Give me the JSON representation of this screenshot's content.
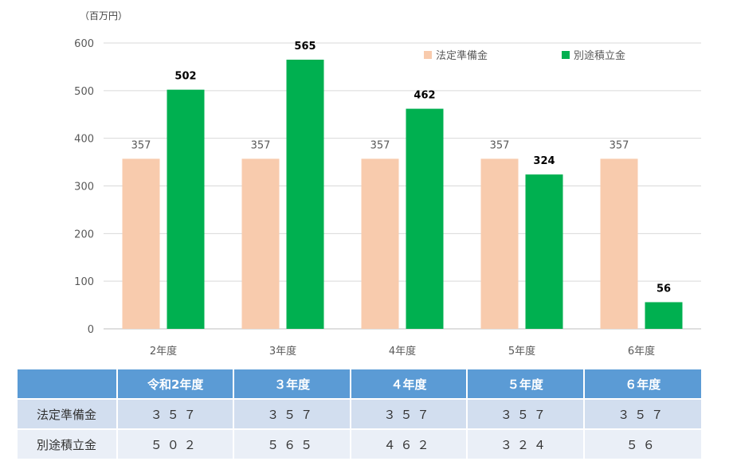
{
  "chart_data": {
    "type": "bar",
    "unit_label": "（百万円）",
    "categories": [
      "2年度",
      "3年度",
      "4年度",
      "5年度",
      "6年度"
    ],
    "series": [
      {
        "name": "法定準備金",
        "values": [
          357,
          357,
          357,
          357,
          357
        ],
        "color": "#f8cbad",
        "label_color": "#595959",
        "label_bold": false
      },
      {
        "name": "別途積立金",
        "values": [
          502,
          565,
          462,
          324,
          56
        ],
        "color": "#00b050",
        "label_color": "#000000",
        "label_bold": true
      }
    ],
    "ylim": [
      0,
      600
    ],
    "yticks": [
      0,
      100,
      200,
      300,
      400,
      500,
      600
    ],
    "grid": true,
    "legend_position": "top-right"
  },
  "table": {
    "headers": [
      "",
      "令和2年度",
      "３年度",
      "４年度",
      "５年度",
      "６年度"
    ],
    "rows": [
      {
        "label": "法定準備金",
        "values": [
          "３５７",
          "３５７",
          "３５７",
          "３５７",
          "３５７"
        ]
      },
      {
        "label": "別途積立金",
        "values": [
          "５０２",
          "５６５",
          "４６２",
          "３２４",
          "５６"
        ]
      }
    ]
  }
}
